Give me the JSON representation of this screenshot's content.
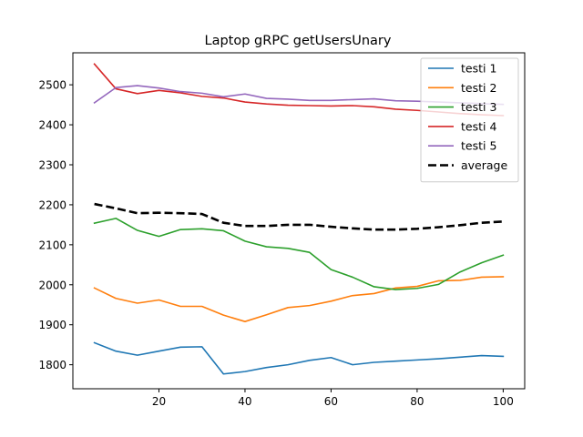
{
  "chart_data": {
    "type": "line",
    "title": "Laptop gRPC getUsersUnary",
    "xlabel": "",
    "ylabel": "",
    "xlim": [
      0,
      105
    ],
    "ylim": [
      1740,
      2580
    ],
    "x_ticks": [
      20,
      40,
      60,
      80,
      100
    ],
    "y_ticks": [
      1800,
      1900,
      2000,
      2100,
      2200,
      2300,
      2400,
      2500
    ],
    "grid": false,
    "legend_position": "top-right",
    "x": [
      5,
      10,
      15,
      20,
      25,
      30,
      35,
      40,
      45,
      50,
      55,
      60,
      65,
      70,
      75,
      80,
      85,
      90,
      95,
      100
    ],
    "series": [
      {
        "name": "testi 1",
        "color": "#1f77b4",
        "dashed": false,
        "values": [
          1855,
          1834,
          1824,
          1834,
          1844,
          1845,
          1777,
          1783,
          1793,
          1800,
          1811,
          1818,
          1800,
          1806,
          1809,
          1812,
          1815,
          1819,
          1823,
          1821
        ]
      },
      {
        "name": "testi 2",
        "color": "#ff7f0e",
        "dashed": false,
        "values": [
          1992,
          1966,
          1954,
          1962,
          1946,
          1946,
          1924,
          1908,
          1925,
          1943,
          1948,
          1959,
          1973,
          1978,
          1992,
          1996,
          2010,
          2011,
          2019,
          2020
        ]
      },
      {
        "name": "testi 3",
        "color": "#2ca02c",
        "dashed": false,
        "values": [
          2154,
          2166,
          2136,
          2121,
          2138,
          2140,
          2135,
          2109,
          2095,
          2091,
          2081,
          2038,
          2019,
          1995,
          1988,
          1991,
          2001,
          2032,
          2055,
          2074
        ]
      },
      {
        "name": "testi 4",
        "color": "#d62728",
        "dashed": false,
        "values": [
          2552,
          2490,
          2478,
          2486,
          2480,
          2471,
          2467,
          2457,
          2452,
          2449,
          2448,
          2447,
          2448,
          2445,
          2439,
          2436,
          2432,
          2428,
          2425,
          2423
        ]
      },
      {
        "name": "testi 5",
        "color": "#9467bd",
        "dashed": false,
        "values": [
          2455,
          2493,
          2498,
          2492,
          2483,
          2479,
          2470,
          2477,
          2466,
          2464,
          2461,
          2461,
          2463,
          2465,
          2460,
          2459,
          2457,
          2455,
          2453,
          2451
        ]
      },
      {
        "name": "average",
        "color": "#000000",
        "dashed": true,
        "values": [
          2202,
          2191,
          2179,
          2180,
          2179,
          2177,
          2155,
          2147,
          2147,
          2150,
          2150,
          2145,
          2141,
          2138,
          2138,
          2140,
          2144,
          2149,
          2155,
          2158
        ]
      }
    ]
  }
}
